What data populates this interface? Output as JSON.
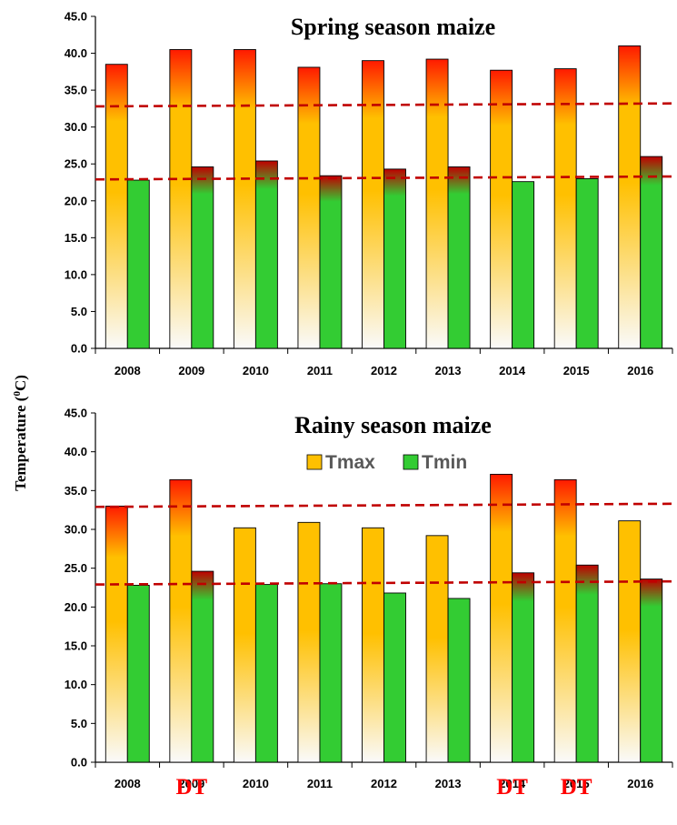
{
  "ylabel": "Temperature",
  "ylabel_unit_open": " (",
  "ylabel_unit_sup": "0",
  "ylabel_unit_close": "C)",
  "chart_data": [
    {
      "type": "bar",
      "title": "Spring  season maize",
      "categories": [
        "2008",
        "2009",
        "2010",
        "2011",
        "2012",
        "2013",
        "2014",
        "2015",
        "2016"
      ],
      "series": [
        {
          "values": [
            38.5,
            40.5,
            40.5,
            38.1,
            39.0,
            39.2,
            37.7,
            37.9,
            41.0
          ],
          "color": "#ffc000"
        },
        {
          "values": [
            22.8,
            24.6,
            25.4,
            23.4,
            24.3,
            24.6,
            22.6,
            23.0,
            26.0
          ],
          "color": "#33cc33"
        }
      ],
      "ylim": [
        0,
        45
      ],
      "yticks": [
        "0.0",
        "5.0",
        "10.0",
        "15.0",
        "20.0",
        "25.0",
        "30.0",
        "35.0",
        "40.0",
        "45.0"
      ],
      "threshold_lines": [
        {
          "start": 32.8,
          "end": 33.2,
          "color": "#c00000"
        },
        {
          "start": 22.9,
          "end": 23.3,
          "color": "#c00000"
        }
      ],
      "legend": null,
      "annotations": []
    },
    {
      "type": "bar",
      "title": "Rainy  season maize",
      "categories": [
        "2008",
        "2009",
        "2010",
        "2011",
        "2012",
        "2013",
        "2014",
        "2015",
        "2016"
      ],
      "series": [
        {
          "name": "Tmax",
          "values": [
            33.0,
            36.4,
            30.2,
            30.9,
            30.2,
            29.2,
            37.1,
            36.4,
            31.1
          ],
          "color": "#ffc000"
        },
        {
          "name": "Tmin",
          "values": [
            22.8,
            24.6,
            22.9,
            23.0,
            21.8,
            21.1,
            24.4,
            25.4,
            23.6
          ],
          "color": "#33cc33"
        }
      ],
      "ylim": [
        0,
        45
      ],
      "yticks": [
        "0.0",
        "5.0",
        "10.0",
        "15.0",
        "20.0",
        "25.0",
        "30.0",
        "35.0",
        "40.0",
        "45.0"
      ],
      "threshold_lines": [
        {
          "start": 32.9,
          "end": 33.3,
          "color": "#c00000"
        },
        {
          "start": 22.9,
          "end": 23.3,
          "color": "#c00000"
        }
      ],
      "legend": "top-center",
      "annotations": [
        {
          "category": "2009",
          "text": "DT"
        },
        {
          "category": "2014",
          "text": "DT"
        },
        {
          "category": "2015",
          "text": "DT"
        }
      ]
    }
  ]
}
